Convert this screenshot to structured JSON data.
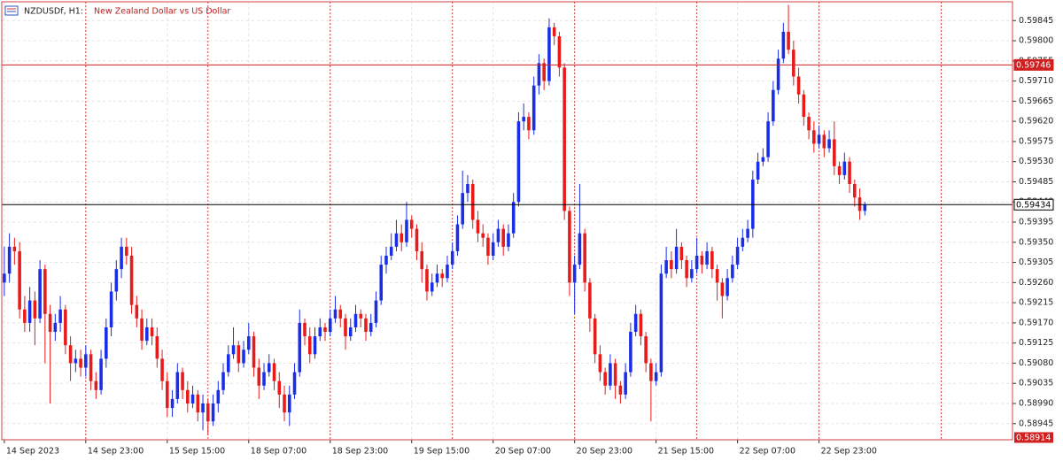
{
  "chart_data": {
    "type": "candlestick",
    "symbol": "NZDUSDf, H1:",
    "description": "New Zealand Dollar vs US Dollar",
    "up_color": "#1a2ee8",
    "down_color": "#e81a1a",
    "grid": true,
    "ylim": [
      0.58909,
      0.59887
    ],
    "yticks": [
      0.59845,
      {
        "value": 0.598,
        "label": "0.59800"
      },
      0.59755,
      {
        "value": 0.5971,
        "label": "0.59710"
      },
      0.59665,
      {
        "value": 0.5962,
        "label": "0.59620"
      },
      0.59575,
      {
        "value": 0.5953,
        "label": "0.59530"
      },
      0.59485,
      {
        "value": 0.5944,
        "label": "0.59440"
      },
      0.59395,
      {
        "value": 0.5935,
        "label": "0.59350"
      },
      0.59305,
      {
        "value": 0.5926,
        "label": "0.59260"
      },
      0.59215,
      {
        "value": 0.5917,
        "label": "0.59170"
      },
      0.59125,
      {
        "value": 0.5908,
        "label": "0.59080"
      },
      0.59035,
      {
        "value": 0.5899,
        "label": "0.58990"
      },
      0.58945
    ],
    "xlim": [
      -0.5,
      198
    ],
    "xticks": [
      {
        "value": 0,
        "label": "14 Sep 2023"
      },
      {
        "value": 16,
        "label": "14 Sep 23:00"
      },
      {
        "value": 32,
        "label": "15 Sep 15:00"
      },
      {
        "value": 48,
        "label": "18 Sep 07:00"
      },
      {
        "value": 64,
        "label": "18 Sep 23:00"
      },
      {
        "value": 80,
        "label": "19 Sep 15:00"
      },
      {
        "value": 96,
        "label": "20 Sep 07:00"
      },
      {
        "value": 112,
        "label": "20 Sep 23:00"
      },
      {
        "value": 128,
        "label": "21 Sep 15:00"
      },
      {
        "value": 144,
        "label": "22 Sep 07:00"
      },
      {
        "value": 160,
        "label": "22 Sep 23:00"
      }
    ],
    "separators": [
      16,
      40,
      64,
      88,
      112,
      136,
      160,
      184
    ],
    "price_lines": [
      {
        "value": 0.59746,
        "color": "#d02020"
      },
      {
        "value": 0.59434,
        "color": "#000000"
      }
    ],
    "bottom_marker": {
      "value": 0.58914,
      "color": "#d02020"
    },
    "candles": [
      [
        0.5926,
        0.5934,
        0.5923,
        0.5928
      ],
      [
        0.5928,
        0.5937,
        0.5926,
        0.5934
      ],
      [
        0.5934,
        0.5936,
        0.593,
        0.5933
      ],
      [
        0.5933,
        0.5935,
        0.5918,
        0.592
      ],
      [
        0.592,
        0.5923,
        0.5915,
        0.5917
      ],
      [
        0.5917,
        0.5925,
        0.5915,
        0.5922
      ],
      [
        0.5922,
        0.5924,
        0.5912,
        0.5918
      ],
      [
        0.5918,
        0.5931,
        0.5917,
        0.5929
      ],
      [
        0.5929,
        0.593,
        0.5908,
        0.5919
      ],
      [
        0.5919,
        0.5921,
        0.5899,
        0.5915
      ],
      [
        0.5915,
        0.5919,
        0.5913,
        0.5917
      ],
      [
        0.5917,
        0.5923,
        0.5915,
        0.592
      ],
      [
        0.592,
        0.5921,
        0.591,
        0.5912
      ],
      [
        0.5912,
        0.5914,
        0.5904,
        0.5908
      ],
      [
        0.5908,
        0.5911,
        0.5906,
        0.5909
      ],
      [
        0.5909,
        0.5911,
        0.5905,
        0.5907
      ],
      [
        0.5907,
        0.5912,
        0.5905,
        0.591
      ],
      [
        0.591,
        0.5911,
        0.5902,
        0.5904
      ],
      [
        0.5904,
        0.5906,
        0.59,
        0.5902
      ],
      [
        0.5902,
        0.5911,
        0.5901,
        0.5909
      ],
      [
        0.5909,
        0.5918,
        0.5907,
        0.5916
      ],
      [
        0.5916,
        0.5926,
        0.5914,
        0.5924
      ],
      [
        0.5924,
        0.5931,
        0.5922,
        0.5929
      ],
      [
        0.5929,
        0.5936,
        0.5927,
        0.5934
      ],
      [
        0.5934,
        0.5936,
        0.593,
        0.5932
      ],
      [
        0.5932,
        0.5934,
        0.5919,
        0.5921
      ],
      [
        0.5921,
        0.5923,
        0.5916,
        0.5918
      ],
      [
        0.5918,
        0.592,
        0.5911,
        0.5913
      ],
      [
        0.5913,
        0.5918,
        0.5912,
        0.5916
      ],
      [
        0.5916,
        0.5918,
        0.5912,
        0.5914
      ],
      [
        0.5914,
        0.5916,
        0.5907,
        0.5909
      ],
      [
        0.5909,
        0.5911,
        0.5902,
        0.5904
      ],
      [
        0.5904,
        0.5906,
        0.5896,
        0.5898
      ],
      [
        0.5898,
        0.5902,
        0.5896,
        0.59
      ],
      [
        0.59,
        0.5908,
        0.5899,
        0.5906
      ],
      [
        0.5906,
        0.5907,
        0.59,
        0.5902
      ],
      [
        0.5902,
        0.5904,
        0.5897,
        0.5899
      ],
      [
        0.5899,
        0.5903,
        0.5898,
        0.5901
      ],
      [
        0.5901,
        0.5902,
        0.5895,
        0.5897
      ],
      [
        0.5897,
        0.5901,
        0.5893,
        0.5899
      ],
      [
        0.5899,
        0.59,
        0.5892,
        0.5895
      ],
      [
        0.5895,
        0.5901,
        0.5894,
        0.5899
      ],
      [
        0.5899,
        0.5904,
        0.5897,
        0.5902
      ],
      [
        0.5902,
        0.5908,
        0.5901,
        0.5906
      ],
      [
        0.5906,
        0.5912,
        0.5905,
        0.591
      ],
      [
        0.591,
        0.5916,
        0.5909,
        0.5912
      ],
      [
        0.5912,
        0.5913,
        0.5906,
        0.5908
      ],
      [
        0.5908,
        0.5913,
        0.5907,
        0.5911
      ],
      [
        0.5911,
        0.5917,
        0.591,
        0.5914
      ],
      [
        0.5914,
        0.5915,
        0.5905,
        0.5907
      ],
      [
        0.5907,
        0.5909,
        0.59,
        0.5903
      ],
      [
        0.5903,
        0.5908,
        0.5902,
        0.5906
      ],
      [
        0.5906,
        0.591,
        0.5905,
        0.5908
      ],
      [
        0.5908,
        0.5909,
        0.5902,
        0.5904
      ],
      [
        0.5904,
        0.5906,
        0.5898,
        0.5901
      ],
      [
        0.5901,
        0.5903,
        0.5895,
        0.5897
      ],
      [
        0.5897,
        0.5903,
        0.5894,
        0.5901
      ],
      [
        0.5901,
        0.5908,
        0.59,
        0.5906
      ],
      [
        0.5906,
        0.592,
        0.5905,
        0.5917
      ],
      [
        0.5917,
        0.5918,
        0.5912,
        0.5914
      ],
      [
        0.5914,
        0.5916,
        0.5908,
        0.591
      ],
      [
        0.591,
        0.5916,
        0.5909,
        0.5914
      ],
      [
        0.5914,
        0.5918,
        0.5913,
        0.5916
      ],
      [
        0.5916,
        0.5917,
        0.5913,
        0.5915
      ],
      [
        0.5915,
        0.592,
        0.5914,
        0.5918
      ],
      [
        0.5918,
        0.5923,
        0.5917,
        0.592
      ],
      [
        0.592,
        0.5921,
        0.5916,
        0.5918
      ],
      [
        0.5918,
        0.5919,
        0.5911,
        0.5914
      ],
      [
        0.5914,
        0.5918,
        0.5913,
        0.5916
      ],
      [
        0.5916,
        0.5921,
        0.5915,
        0.5919
      ],
      [
        0.5919,
        0.592,
        0.5916,
        0.5918
      ],
      [
        0.5918,
        0.5919,
        0.5913,
        0.5915
      ],
      [
        0.5915,
        0.5919,
        0.5914,
        0.5917
      ],
      [
        0.5917,
        0.5924,
        0.5916,
        0.5922
      ],
      [
        0.5922,
        0.5932,
        0.5921,
        0.593
      ],
      [
        0.593,
        0.5934,
        0.5928,
        0.5932
      ],
      [
        0.5932,
        0.5937,
        0.5931,
        0.5934
      ],
      [
        0.5934,
        0.594,
        0.5933,
        0.5937
      ],
      [
        0.5937,
        0.5939,
        0.5933,
        0.5935
      ],
      [
        0.5935,
        0.5944,
        0.5934,
        0.594
      ],
      [
        0.594,
        0.5941,
        0.5936,
        0.5938
      ],
      [
        0.5938,
        0.5939,
        0.5931,
        0.5933
      ],
      [
        0.5933,
        0.5935,
        0.5926,
        0.5929
      ],
      [
        0.5929,
        0.593,
        0.5922,
        0.5924
      ],
      [
        0.5924,
        0.5928,
        0.5923,
        0.5926
      ],
      [
        0.5926,
        0.593,
        0.5925,
        0.5928
      ],
      [
        0.5928,
        0.5929,
        0.5925,
        0.5927
      ],
      [
        0.5927,
        0.5932,
        0.5926,
        0.593
      ],
      [
        0.593,
        0.5935,
        0.5929,
        0.5933
      ],
      [
        0.5933,
        0.5941,
        0.5932,
        0.5939
      ],
      [
        0.5939,
        0.5951,
        0.5938,
        0.5946
      ],
      [
        0.5946,
        0.595,
        0.5944,
        0.5948
      ],
      [
        0.5948,
        0.5949,
        0.5938,
        0.594
      ],
      [
        0.594,
        0.5942,
        0.5935,
        0.5937
      ],
      [
        0.5937,
        0.5939,
        0.5934,
        0.5936
      ],
      [
        0.5936,
        0.5937,
        0.593,
        0.5932
      ],
      [
        0.5932,
        0.5937,
        0.5931,
        0.5935
      ],
      [
        0.5935,
        0.594,
        0.5934,
        0.5938
      ],
      [
        0.5938,
        0.5939,
        0.5932,
        0.5934
      ],
      [
        0.5934,
        0.5939,
        0.5933,
        0.5937
      ],
      [
        0.5937,
        0.5946,
        0.5936,
        0.5944
      ],
      [
        0.5944,
        0.5964,
        0.5943,
        0.5962
      ],
      [
        0.5962,
        0.5966,
        0.596,
        0.5963
      ],
      [
        0.5963,
        0.5964,
        0.5958,
        0.596
      ],
      [
        0.596,
        0.5972,
        0.5959,
        0.597
      ],
      [
        0.597,
        0.5977,
        0.5968,
        0.5975
      ],
      [
        0.5975,
        0.5976,
        0.5969,
        0.5971
      ],
      [
        0.5971,
        0.5985,
        0.597,
        0.5983
      ],
      [
        0.5983,
        0.5984,
        0.5979,
        0.5981
      ],
      [
        0.5981,
        0.5982,
        0.5972,
        0.5974
      ],
      [
        0.5974,
        0.5975,
        0.594,
        0.5942
      ],
      [
        0.5942,
        0.5943,
        0.5923,
        0.5926
      ],
      [
        0.5926,
        0.5932,
        0.5919,
        0.593
      ],
      [
        0.593,
        0.5948,
        0.5929,
        0.5937
      ],
      [
        0.5937,
        0.5938,
        0.5924,
        0.5926
      ],
      [
        0.5926,
        0.5927,
        0.5915,
        0.5918
      ],
      [
        0.5918,
        0.5919,
        0.5908,
        0.591
      ],
      [
        0.591,
        0.5912,
        0.5904,
        0.5906
      ],
      [
        0.5906,
        0.5907,
        0.5901,
        0.5903
      ],
      [
        0.5903,
        0.591,
        0.5902,
        0.5908
      ],
      [
        0.5908,
        0.5909,
        0.59,
        0.5903
      ],
      [
        0.5903,
        0.5904,
        0.5899,
        0.5901
      ],
      [
        0.5901,
        0.5908,
        0.59,
        0.5906
      ],
      [
        0.5906,
        0.5917,
        0.5905,
        0.5915
      ],
      [
        0.5915,
        0.5921,
        0.5914,
        0.5919
      ],
      [
        0.5919,
        0.592,
        0.5912,
        0.5914
      ],
      [
        0.5914,
        0.5915,
        0.5906,
        0.5908
      ],
      [
        0.5908,
        0.5909,
        0.5895,
        0.5904
      ],
      [
        0.5904,
        0.5908,
        0.5903,
        0.5906
      ],
      [
        0.5906,
        0.593,
        0.5905,
        0.5928
      ],
      [
        0.5928,
        0.5934,
        0.5927,
        0.5931
      ],
      [
        0.5931,
        0.5933,
        0.5927,
        0.5929
      ],
      [
        0.5929,
        0.5938,
        0.5928,
        0.5934
      ],
      [
        0.5934,
        0.5935,
        0.5929,
        0.5931
      ],
      [
        0.5931,
        0.5932,
        0.5925,
        0.5927
      ],
      [
        0.5927,
        0.5931,
        0.5926,
        0.5929
      ],
      [
        0.5929,
        0.5936,
        0.5928,
        0.5932
      ],
      [
        0.5932,
        0.5933,
        0.5928,
        0.593
      ],
      [
        0.593,
        0.5935,
        0.5929,
        0.5933
      ],
      [
        0.5933,
        0.5934,
        0.5927,
        0.5929
      ],
      [
        0.5929,
        0.593,
        0.5922,
        0.5926
      ],
      [
        0.5926,
        0.5927,
        0.5918,
        0.5923
      ],
      [
        0.5923,
        0.5929,
        0.5922,
        0.5927
      ],
      [
        0.5927,
        0.5932,
        0.5926,
        0.593
      ],
      [
        0.593,
        0.5936,
        0.5929,
        0.5934
      ],
      [
        0.5934,
        0.5938,
        0.5933,
        0.5936
      ],
      [
        0.5936,
        0.594,
        0.5935,
        0.5938
      ],
      [
        0.5938,
        0.5951,
        0.5936,
        0.5949
      ],
      [
        0.5949,
        0.5955,
        0.5948,
        0.5953
      ],
      [
        0.5953,
        0.5956,
        0.5952,
        0.5954
      ],
      [
        0.5954,
        0.5964,
        0.5953,
        0.5962
      ],
      [
        0.5962,
        0.5971,
        0.5961,
        0.5969
      ],
      [
        0.5969,
        0.5978,
        0.5968,
        0.5976
      ],
      [
        0.5976,
        0.5984,
        0.5975,
        0.5982
      ],
      [
        0.5982,
        0.5988,
        0.5977,
        0.5978
      ],
      [
        0.5978,
        0.598,
        0.597,
        0.5972
      ],
      [
        0.5972,
        0.5974,
        0.5966,
        0.5968
      ],
      [
        0.5968,
        0.5969,
        0.5961,
        0.5963
      ],
      [
        0.5963,
        0.5964,
        0.5958,
        0.596
      ],
      [
        0.596,
        0.5962,
        0.5955,
        0.5957
      ],
      [
        0.5957,
        0.5961,
        0.5956,
        0.5959
      ],
      [
        0.5959,
        0.596,
        0.5954,
        0.5956
      ],
      [
        0.5956,
        0.596,
        0.5955,
        0.5958
      ],
      [
        0.5958,
        0.5962,
        0.595,
        0.5952
      ],
      [
        0.5952,
        0.5953,
        0.5948,
        0.595
      ],
      [
        0.595,
        0.5955,
        0.5949,
        0.5953
      ],
      [
        0.5953,
        0.5954,
        0.5946,
        0.5948
      ],
      [
        0.5948,
        0.5949,
        0.5943,
        0.5945
      ],
      [
        0.5945,
        0.5947,
        0.594,
        0.5942
      ],
      [
        0.5942,
        0.5944,
        0.5941,
        0.59434
      ]
    ]
  }
}
